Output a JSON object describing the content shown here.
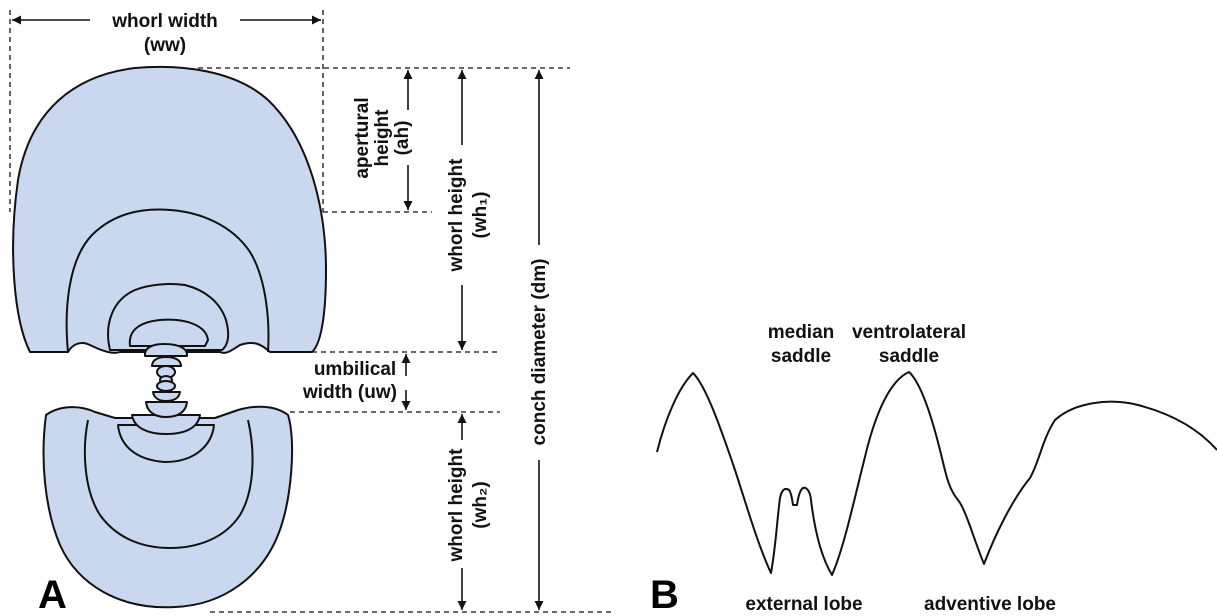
{
  "colors": {
    "shell_fill": "#c9d7ef",
    "outline": "#111111"
  },
  "panel_a": {
    "letter": "A",
    "whorl_width": {
      "line1": "whorl width",
      "line2": "(ww)"
    },
    "apertural_height": {
      "line1": "apertural",
      "line2": "height",
      "line3": "(ah)"
    },
    "whorl_height_1": {
      "line1": "whorl height",
      "line2": "(wh₁)"
    },
    "conch_diameter": "conch diameter (dm)",
    "umbilical_width": {
      "line1": "umbilical",
      "line2": "width (uw)"
    },
    "whorl_height_2": {
      "line1": "whorl height",
      "line2": "(wh₂)"
    }
  },
  "panel_b": {
    "letter": "B",
    "median_saddle": {
      "line1": "median",
      "line2": "saddle"
    },
    "ventrolateral_saddle": {
      "line1": "ventrolateral",
      "line2": "saddle"
    },
    "external_lobe": "external lobe",
    "adventive_lobe": "adventive lobe"
  }
}
